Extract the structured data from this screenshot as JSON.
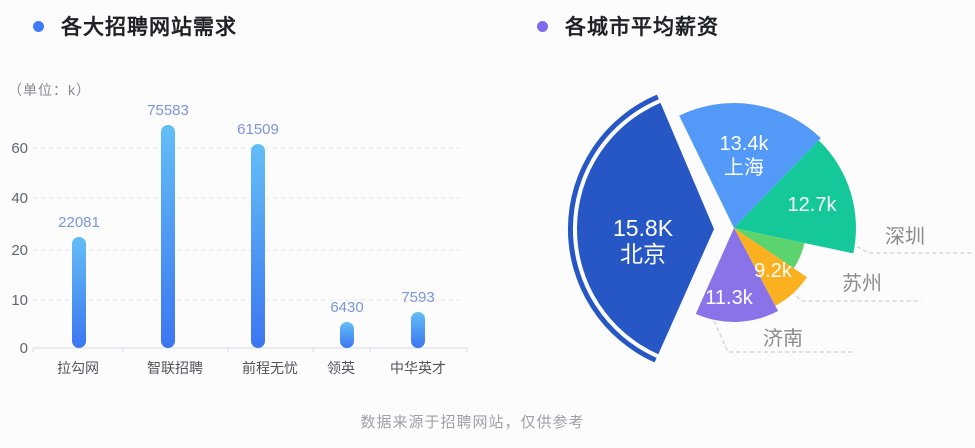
{
  "page": {
    "background": "#FCFCFD"
  },
  "footer": {
    "source_note": "数据来源于招聘网站，仅供参考"
  },
  "chart_data": [
    {
      "type": "bar",
      "title": "各大招聘网站需求",
      "bullet_color": "#3E7CF7",
      "unit_label": "（单位：k）",
      "categories": [
        "拉勾网",
        "智联招聘",
        "前程无忧",
        "领英",
        "中华英才"
      ],
      "values": [
        22081,
        75583,
        61509,
        6430,
        7593
      ],
      "y_ticks": [
        0,
        10,
        20,
        40,
        60
      ],
      "grid": true,
      "legend": "none",
      "bar_gradient_top": "#63BEF6",
      "bar_gradient_bottom": "#3C76F1",
      "value_label_color": "#7C96DC",
      "axis_label_color": "#5E6673",
      "category_label_color": "#50555E",
      "axis_line_color": "#D8DBE1",
      "grid_line_color": "#E2E5EA"
    },
    {
      "type": "pie",
      "title": "各城市平均薪资",
      "bullet_color": "#7C6BEF",
      "slices": [
        {
          "name": "北京",
          "value_label": "15.8K",
          "color": "#2757C5",
          "start_deg": 114,
          "end_deg": 247,
          "radius": 137,
          "exploded": true,
          "halo_arc": true,
          "inside_lines": [
            "15.8K",
            "北京"
          ]
        },
        {
          "name": "上海",
          "value_label": "13.4k",
          "color": "#539AF8",
          "start_deg": -116,
          "end_deg": -46,
          "radius": 125,
          "inside_lines": [
            "13.4k",
            "上海"
          ]
        },
        {
          "name": "深圳",
          "value_label": "12.7k",
          "color": "#14C89A",
          "start_deg": -46,
          "end_deg": 12,
          "radius": 122,
          "inside_lines": [
            "12.7k"
          ],
          "outside_label": "深圳"
        },
        {
          "name": "",
          "value_label": "",
          "color": "#5BD36E",
          "start_deg": 12,
          "end_deg": 34,
          "radius": 72,
          "inside_lines": []
        },
        {
          "name": "苏州",
          "value_label": "9.2k",
          "color": "#FBB01F",
          "start_deg": 34,
          "end_deg": 62,
          "radius": 88,
          "inside_lines": [
            "9.2k"
          ],
          "outside_label": "苏州"
        },
        {
          "name": "济南",
          "value_label": "11.3k",
          "color": "#8A73E9",
          "start_deg": 62,
          "end_deg": 114,
          "radius": 94,
          "inside_lines": [
            "11.3k"
          ],
          "outside_label": "济南"
        }
      ],
      "inside_label_color": "#FFFFFF",
      "outside_label_color": "#8B8B8B",
      "leader_line_color": "#CBCFD6"
    }
  ]
}
